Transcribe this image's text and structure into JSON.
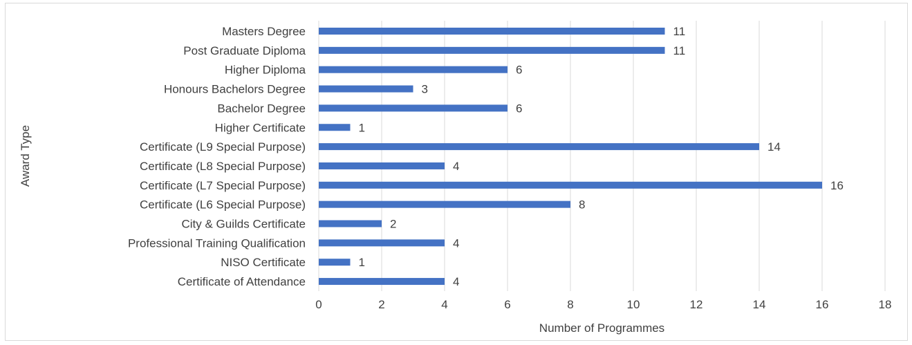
{
  "chart_data": {
    "type": "bar",
    "orientation": "horizontal",
    "title": "",
    "xlabel": "Number of Programmes",
    "ylabel": "Award Type",
    "xlim": [
      0,
      18
    ],
    "x_ticks": [
      0,
      2,
      4,
      6,
      8,
      10,
      12,
      14,
      16,
      18
    ],
    "grid": "vertical",
    "legend": "none",
    "bar_color": "#4472c4",
    "categories": [
      "Masters Degree",
      "Post Graduate Diploma",
      "Higher Diploma",
      "Honours Bachelors Degree",
      "Bachelor Degree",
      "Higher Certificate",
      "Certificate (L9 Special Purpose)",
      "Certificate (L8 Special Purpose)",
      "Certificate (L7 Special Purpose)",
      "Certificate (L6 Special Purpose)",
      "City & Guilds Certificate",
      "Professional Training Qualification",
      "NISO Certificate",
      "Certificate of Attendance"
    ],
    "values": [
      11,
      11,
      6,
      3,
      6,
      1,
      14,
      4,
      16,
      8,
      2,
      4,
      1,
      4
    ]
  }
}
